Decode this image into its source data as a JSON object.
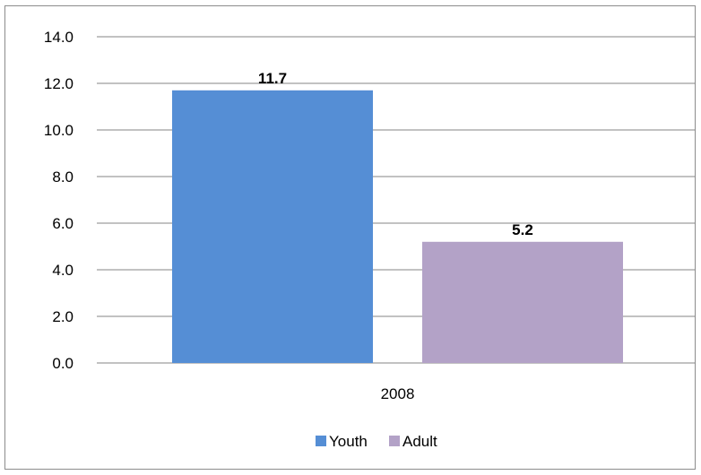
{
  "chart_data": {
    "type": "bar",
    "categories": [
      "2008"
    ],
    "series": [
      {
        "name": "Youth",
        "values": [
          11.7
        ],
        "color": "#558ed5"
      },
      {
        "name": "Adult",
        "values": [
          5.2
        ],
        "color": "#b3a2c7"
      }
    ],
    "data_labels": [
      "11.7",
      "5.2"
    ],
    "ylim": [
      0,
      14
    ],
    "y_ticks": [
      "0.0",
      "2.0",
      "4.0",
      "6.0",
      "8.0",
      "10.0",
      "12.0",
      "14.0"
    ],
    "grid": true,
    "legend_position": "bottom"
  }
}
